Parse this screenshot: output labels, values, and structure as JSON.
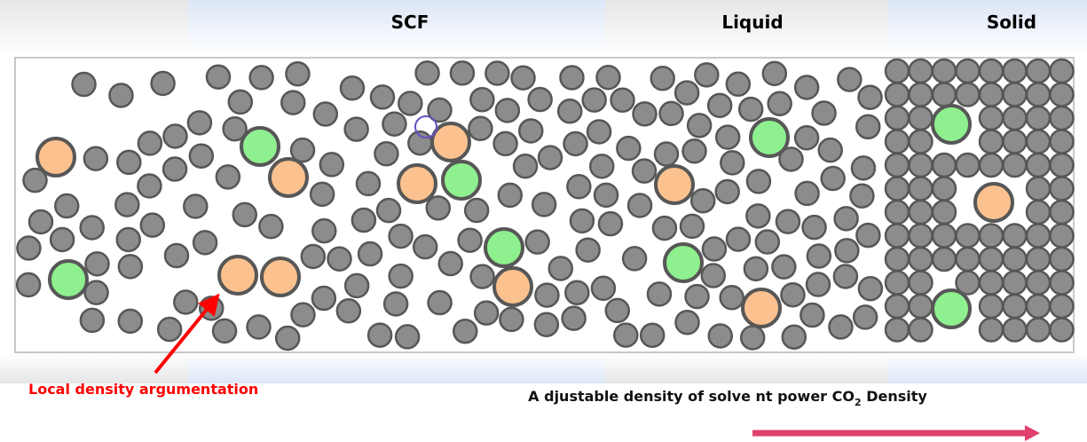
{
  "header": {
    "phases": [
      "SCF",
      "Liquid",
      "Solid"
    ]
  },
  "annotation": "Local density argumentation",
  "caption": {
    "before": "A djustable density of solve nt power CO",
    "sub": "2",
    "after": " Density"
  }
}
